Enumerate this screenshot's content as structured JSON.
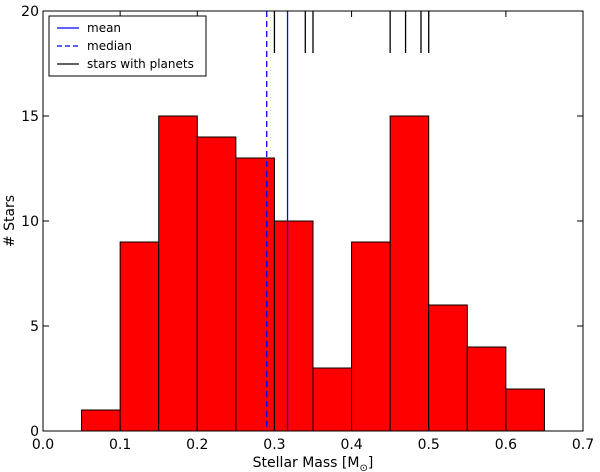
{
  "chart_data": {
    "type": "bar",
    "bins": [
      {
        "x0": 0.05,
        "x1": 0.1,
        "count": 1
      },
      {
        "x0": 0.1,
        "x1": 0.15,
        "count": 9
      },
      {
        "x0": 0.15,
        "x1": 0.2,
        "count": 15
      },
      {
        "x0": 0.2,
        "x1": 0.25,
        "count": 14
      },
      {
        "x0": 0.25,
        "x1": 0.3,
        "count": 13
      },
      {
        "x0": 0.3,
        "x1": 0.35,
        "count": 10
      },
      {
        "x0": 0.35,
        "x1": 0.4,
        "count": 3
      },
      {
        "x0": 0.4,
        "x1": 0.45,
        "count": 9
      },
      {
        "x0": 0.45,
        "x1": 0.5,
        "count": 15
      },
      {
        "x0": 0.5,
        "x1": 0.55,
        "count": 6
      },
      {
        "x0": 0.55,
        "x1": 0.6,
        "count": 4
      },
      {
        "x0": 0.6,
        "x1": 0.65,
        "count": 2
      }
    ],
    "mean": 0.317,
    "median": 0.29,
    "planet_star_masses": [
      0.3,
      0.34,
      0.35,
      0.45,
      0.47,
      0.49,
      0.5
    ],
    "xlabel": "Stellar Mass [M",
    "xlabel_sub": "⊙",
    "xlabel_end": "]",
    "ylabel": "# Stars",
    "xlim": [
      0.0,
      0.7
    ],
    "ylim": [
      0,
      20
    ],
    "xticks": [
      "0.0",
      "0.1",
      "0.2",
      "0.3",
      "0.4",
      "0.5",
      "0.6",
      "0.7"
    ],
    "yticks": [
      "0",
      "5",
      "10",
      "15",
      "20"
    ],
    "legend": {
      "position": "top-left",
      "entries": [
        "mean",
        "median",
        "stars with planets"
      ]
    },
    "colors": {
      "bar": "#ff0000",
      "mean": "#0000ff",
      "median": "#0000ff",
      "planets": "#000000"
    }
  }
}
